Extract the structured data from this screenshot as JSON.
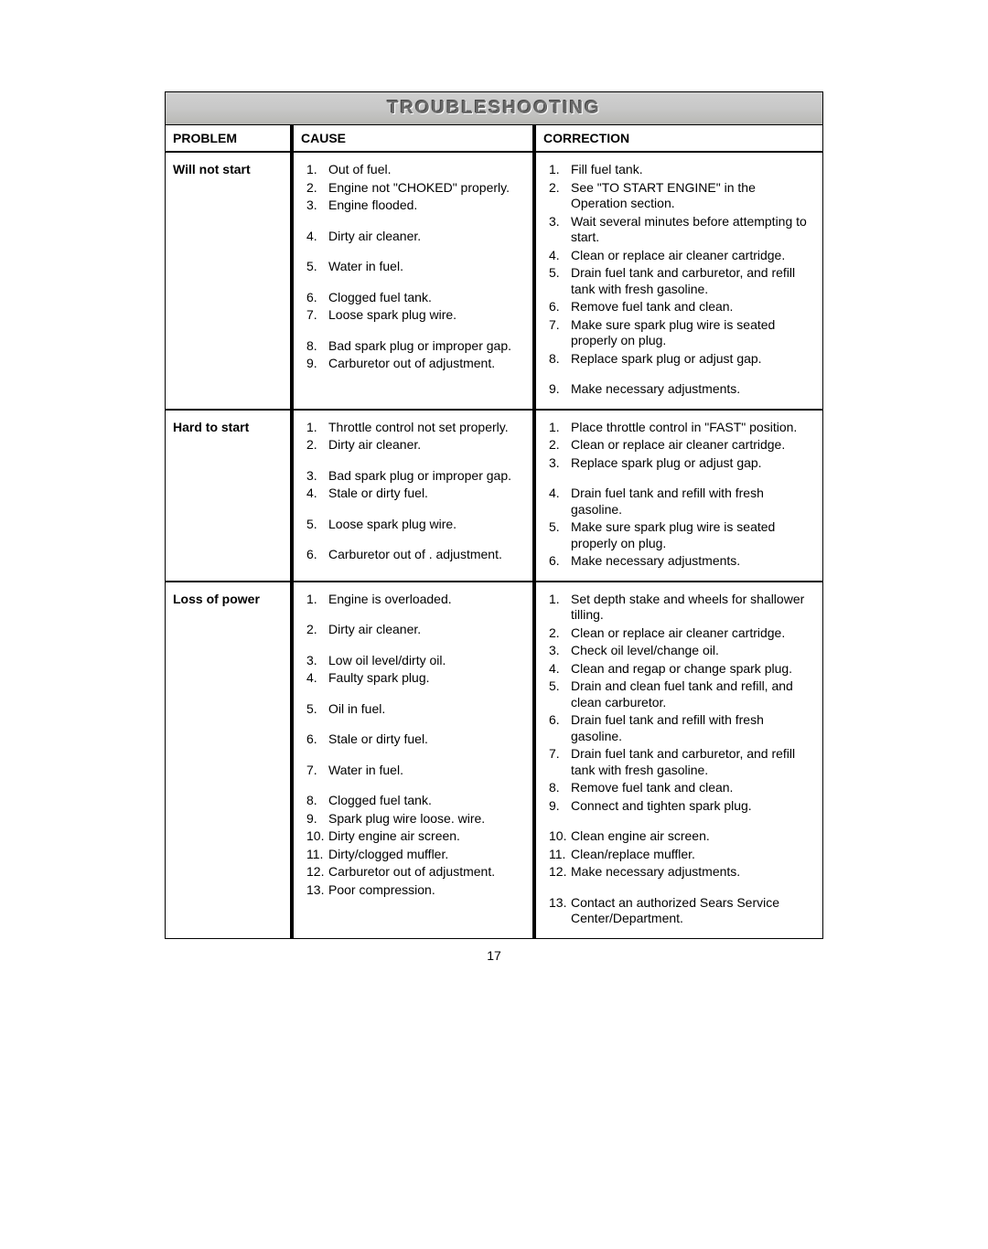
{
  "header_title": "TROUBLESHOOTING",
  "col_headers": {
    "problem": "PROBLEM",
    "cause": "CAUSE",
    "correction": "CORRECTION"
  },
  "rows": [
    {
      "problem": "Will not start",
      "causes": [
        {
          "n": "1.",
          "t": "Out of fuel."
        },
        {
          "n": "2.",
          "t": "Engine not \"CHOKED\" properly."
        },
        {
          "n": "3.",
          "t": "Engine flooded.",
          "gap": "sm"
        },
        {
          "n": "4.",
          "t": "Dirty air cleaner.",
          "gap": "sm"
        },
        {
          "n": "5.",
          "t": "Water in fuel.",
          "gap": "sm"
        },
        {
          "n": "6.",
          "t": "Clogged fuel tank."
        },
        {
          "n": "7.",
          "t": "Loose spark plug wire.",
          "gap": "sm"
        },
        {
          "n": "8.",
          "t": "Bad spark plug or improper gap."
        },
        {
          "n": "9.",
          "t": "Carburetor out of adjust­ment."
        }
      ],
      "corrections": [
        {
          "n": "1.",
          "t": "Fill fuel tank."
        },
        {
          "n": "2.",
          "t": "See \"TO START ENGINE\" in the Operation section."
        },
        {
          "n": "3.",
          "t": "Wait several minutes before attempting to start."
        },
        {
          "n": "4.",
          "t": "Clean or replace air cleaner car­tridge."
        },
        {
          "n": "5.",
          "t": "Drain fuel tank and carburetor, and refill tank with fresh gasoline."
        },
        {
          "n": "6.",
          "t": "Remove fuel tank and clean."
        },
        {
          "n": "7.",
          "t": "Make sure spark plug wire is seat­ed properly on plug."
        },
        {
          "n": "8.",
          "t": "Replace spark plug or adjust gap.",
          "gap": "sm"
        },
        {
          "n": "9.",
          "t": "Make necessary adjustments."
        }
      ]
    },
    {
      "problem": "Hard to start",
      "causes": [
        {
          "n": "1.",
          "t": "Throttle control not set properly."
        },
        {
          "n": "2.",
          "t": "Dirty air cleaner.",
          "gap": "sm"
        },
        {
          "n": "3.",
          "t": "Bad spark plug or improper gap."
        },
        {
          "n": "4.",
          "t": "Stale or dirty fuel.",
          "gap": "sm"
        },
        {
          "n": "5.",
          "t": "Loose spark plug wire.",
          "gap": "sm"
        },
        {
          "n": "6.",
          "t": "Carburetor out of . adjustment."
        }
      ],
      "corrections": [
        {
          "n": "1.",
          "t": "Place throttle control in \"FAST\" position."
        },
        {
          "n": "2.",
          "t": "Clean or replace air cleaner car­tridge."
        },
        {
          "n": "3.",
          "t": "Replace spark plug or adjust gap.",
          "gap": "sm"
        },
        {
          "n": "4.",
          "t": "Drain fuel tank and refill with fresh gasoline."
        },
        {
          "n": "5.",
          "t": "Make sure spark plug wire is seat­ed properly on plug."
        },
        {
          "n": "6.",
          "t": "Make necessary adjustments."
        }
      ]
    },
    {
      "problem": "Loss of power",
      "causes": [
        {
          "n": "1.",
          "t": "Engine is overloaded.",
          "gap": "sm"
        },
        {
          "n": "2.",
          "t": "Dirty air cleaner.",
          "gap": "sm"
        },
        {
          "n": "3.",
          "t": "Low oil level/dirty oil."
        },
        {
          "n": "4.",
          "t": "Faulty spark plug.",
          "gap": "sm"
        },
        {
          "n": "5.",
          "t": "Oil in fuel.",
          "gap": "sm"
        },
        {
          "n": "6.",
          "t": "Stale or dirty fuel.",
          "gap": "sm"
        },
        {
          "n": "7.",
          "t": "Water in fuel.",
          "gap": "sm"
        },
        {
          "n": "8.",
          "t": "Clogged fuel tank."
        },
        {
          "n": "9.",
          "t": "Spark plug wire loose. wire."
        },
        {
          "n": "10.",
          "t": "Dirty engine air screen."
        },
        {
          "n": "11.",
          "t": "Dirty/clogged muffler."
        },
        {
          "n": "12.",
          "t": "Carburetor out of adjustment."
        },
        {
          "n": "13.",
          "t": "Poor compression."
        }
      ],
      "corrections": [
        {
          "n": "1.",
          "t": "Set depth stake and wheels for shallower tilling."
        },
        {
          "n": "2.",
          "t": "Clean or replace air cleaner car­tridge."
        },
        {
          "n": "3.",
          "t": "Check oil level/change oil."
        },
        {
          "n": "4.",
          "t": "Clean and regap or change spark plug."
        },
        {
          "n": "5.",
          "t": "Drain and clean fuel tank and refill,  and clean carburetor."
        },
        {
          "n": "6.",
          "t": "Drain fuel tank and refill with fresh gasoline."
        },
        {
          "n": "7.",
          "t": "Drain fuel tank and carburetor, and refill tank with fresh gasoline."
        },
        {
          "n": "8.",
          "t": "Remove fuel tank and clean."
        },
        {
          "n": "9.",
          "t": "Connect and tighten spark plug.",
          "gap": "sm"
        },
        {
          "n": "10.",
          "t": "Clean engine air screen."
        },
        {
          "n": "11.",
          "t": "Clean/replace muffler."
        },
        {
          "n": "12.",
          "t": "Make necessary adjustments.",
          "gap": "sm"
        },
        {
          "n": "13.",
          "t": "Contact an authorized Sears Service Center/Department."
        }
      ]
    }
  ],
  "page_number": "17"
}
